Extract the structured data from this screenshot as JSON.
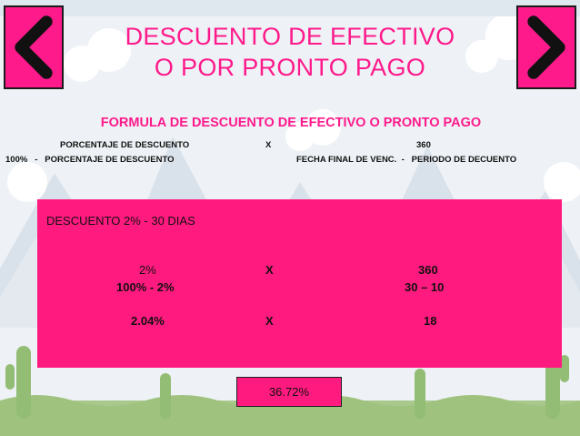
{
  "title_line1": "DESCUENTO DE EFECTIVO",
  "title_line2": "O POR PRONTO PAGO",
  "formula": {
    "heading": "FORMULA DE DESCUENTO DE EFECTIVO O PRONTO PAGO",
    "numerator_left": "PORCENTAJE DE DESCUENTO",
    "operator": "X",
    "numerator_right": "360",
    "denominator_left": "100%   -   PORCENTAJE DE DESCUENTO",
    "denominator_right": "FECHA FINAL DE VENC.  -   PERIODO DE DECUENTO"
  },
  "example": {
    "heading": "DESCUENTO  2%  - 30 DIAS",
    "row1": {
      "left": "2%",
      "op": "X",
      "right": "360"
    },
    "row2": {
      "left": "100% - 2%",
      "right": "30 – 10"
    },
    "row3": {
      "left": "2.04%",
      "op": "X",
      "right": "18"
    }
  },
  "result": "36.72%",
  "colors": {
    "accent": "#ff1a7f",
    "nav": "#ff1a8c"
  },
  "icons": {
    "prev": "chevron-left-icon",
    "next": "chevron-right-icon"
  }
}
